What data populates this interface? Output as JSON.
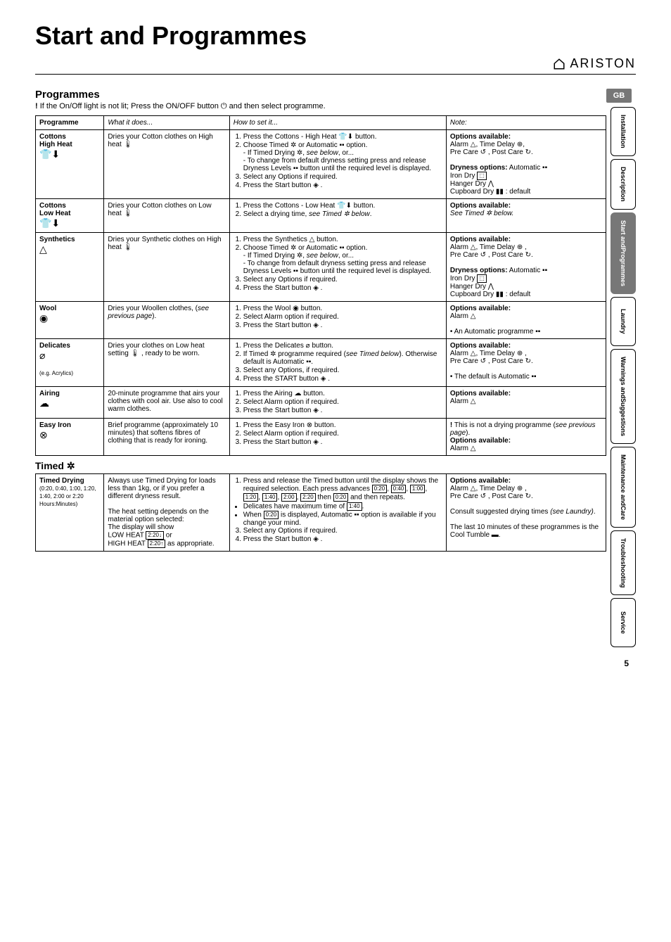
{
  "title": "Start and Programmes",
  "brand": "ARISTON",
  "section_heading": "Programmes",
  "intro_prefix": "!",
  "intro_text": " If the On/Off light is not lit; Press the ON/OFF button  ⏻  and then select programme.",
  "headers": {
    "c1": "Programme",
    "c2": "What it does...",
    "c3": "How to set it...",
    "c4": "Note:"
  },
  "timed_heading": "Timed  ✲",
  "page_number": "5",
  "gb": "GB",
  "tabs": [
    "Installation",
    "Description",
    "Start and\nProgrammes",
    "Laundry",
    "Warnings and\nSuggestions",
    "Maintenance and\nCare",
    "Troubleshooting",
    "Service"
  ],
  "active_tab_index": 2,
  "rows": [
    {
      "name": "Cottons\nHigh Heat",
      "icon": "👕⬇",
      "what": "Dries your Cotton clothes on High heat 🌡",
      "how": "<ol class='steps'><li>Press the Cottons - High Heat 👕⬇ button.</li><li>Choose Timed ✲ or Automatic ▪▪ option.<br>- If Timed Drying ✲, <i>see below</i>, or...<br>- To change from default dryness setting press and release Dryness Levels ▪▪ button until the required level is displayed.</li><li>Select any Options if required.</li><li>Press the Start button ◈ .</li></ol>",
      "note": "<b>Options available:</b><br>Alarm △, Time Delay ⊕,<br>Pre Care ↺ , Post Care ↻.<br><br><b>Dryness options:</b> Automatic ▪▪<br>Iron Dry <span class='iconbox'>⬚</span><br>Hanger Dry ⋀<br>Cupboard Dry ▮▮ : default"
    },
    {
      "name": "Cottons\nLow Heat",
      "icon": "👕⬇",
      "what": "Dries your Cotton clothes on Low heat 🌡",
      "how": "<ol class='steps'><li>Press the Cottons - Low Heat 👕⬇ button.</li><li>Select a drying time, <i>see Timed ✲ below</i>.</li></ol>",
      "note": "<b>Options available:</b><br><i>See Timed ✲ below.</i>"
    },
    {
      "name": "Synthetics",
      "icon": "△",
      "what": "Dries your Synthetic clothes on High heat 🌡",
      "how": "<ol class='steps'><li>Press the Synthetics △ button.</li><li>Choose Timed ✲ or Automatic ▪▪ option.<br>- If Timed Drying ✲, <i>see below</i>, or...<br>- To change from default dryness setting press and release Dryness Levels ▪▪ button until the required level is displayed.</li><li>Select any Options if required.</li><li>Press the Start button ◈ .</li></ol>",
      "note": "<b>Options available:</b><br>Alarm △, Time Delay ⊕ ,<br>Pre Care ↺ , Post Care ↻.<br><br><b>Dryness options:</b> Automatic ▪▪<br>Iron Dry <span class='iconbox'>⬚</span><br>Hanger Dry ⋀<br>Cupboard Dry ▮▮ : default"
    },
    {
      "name": "Wool",
      "icon": "◉",
      "what": "Dries your Woollen clothes, (<i>see previous page</i>).",
      "how": "<ol class='steps'><li>Press the Wool ◉ button.</li><li>Select Alarm option if required.</li><li>Press the Start button ◈ .</li></ol>",
      "note": "<b>Options available:</b><br>Alarm △<br><br>• An Automatic programme ▪▪"
    },
    {
      "name": "Delicates",
      "icon": "⌀",
      "sub": "(e.g. Acrylics)",
      "what": "Dries your clothes on Low heat setting 🌡 , ready to be worn.",
      "how": "<ol class='steps'><li>Press the Delicates ⌀ button.</li><li>If Timed ✲ programme required (<i>see Timed below</i>). Otherwise default is Automatic ▪▪.</li><li>Select any Options, if required.</li><li>Press the START button ◈ .</li></ol>",
      "note": "<b>Options available:</b><br>Alarm △, Time Delay ⊕ ,<br>Pre Care ↺ , Post Care ↻.<br><br>• The default is Automatic ▪▪"
    },
    {
      "name": "Airing",
      "icon": "☁",
      "what": "20-minute programme that airs your clothes with cool air. Use also to cool warm clothes.",
      "how": "<ol class='steps'><li>Press the Airing ☁ button.</li><li>Select Alarm option if required.</li><li>Press the Start button ◈ .</li></ol>",
      "note": "<b>Options available:</b><br>Alarm △"
    },
    {
      "name": "Easy Iron",
      "icon": "⊗",
      "what": "Brief programme (approximately 10 minutes) that softens fibres of clothing that is ready for ironing.",
      "how": "<ol class='steps'><li>Press the Easy Iron ⊗ button.</li><li>Select Alarm option if required.</li><li>Press the Start button ◈ .</li></ol>",
      "note": "<b>!</b> This is not a drying programme (<i>see previous page</i>).<br><b>Options available:</b><br>Alarm △"
    }
  ],
  "timed_row": {
    "name": "Timed Drying",
    "sub": "(0:20, 0:40, 1:00, 1:20, 1:40, 2:00 or 2:20 Hours:Minutes)",
    "what": "Always use Timed Drying for loads less than 1kg, or if you prefer a different dryness result.<br><br>The heat setting depends on the material option selected:<br>The display will show<br>LOW HEAT <span class='iconbox'>2:20↓</span> or<br>HIGH HEAT <span class='iconbox'>2:20↑</span> as appropriate.",
    "how": "<ol class='steps'><li>Press and release the Timed button until the display shows the required selection. Each press advances <span class='iconbox'>0:20</span>, <span class='iconbox'>0:40</span>, <span class='iconbox'>1:00</span>, <span class='iconbox'>1:20</span>, <span class='iconbox'>1:40</span>, <span class='iconbox'>2:00</span>, <span class='iconbox'>2:20</span> then <span class='iconbox'>0:20</span> and then repeats.</li></ol><ul class='bul'><li>Delicates have maximum time of <span class='iconbox'>1:40</span>.</li><li>When <span class='iconbox'>0:20</span> is displayed, Automatic ▪▪ option is available if you change your mind.</li></ul><ol class='steps' start='3'><li>Select any Options if required.</li><li>Press the Start button ◈ .</li></ol>",
    "note": "<b>Options available:</b><br>Alarm △, Time Delay ⊕ ,<br>Pre Care ↺ , Post Care ↻.<br><br>Consult suggested drying times <i>(see Laundry)</i>.<br><br>The last 10 minutes of these programmes is the Cool Tumble ▬."
  }
}
